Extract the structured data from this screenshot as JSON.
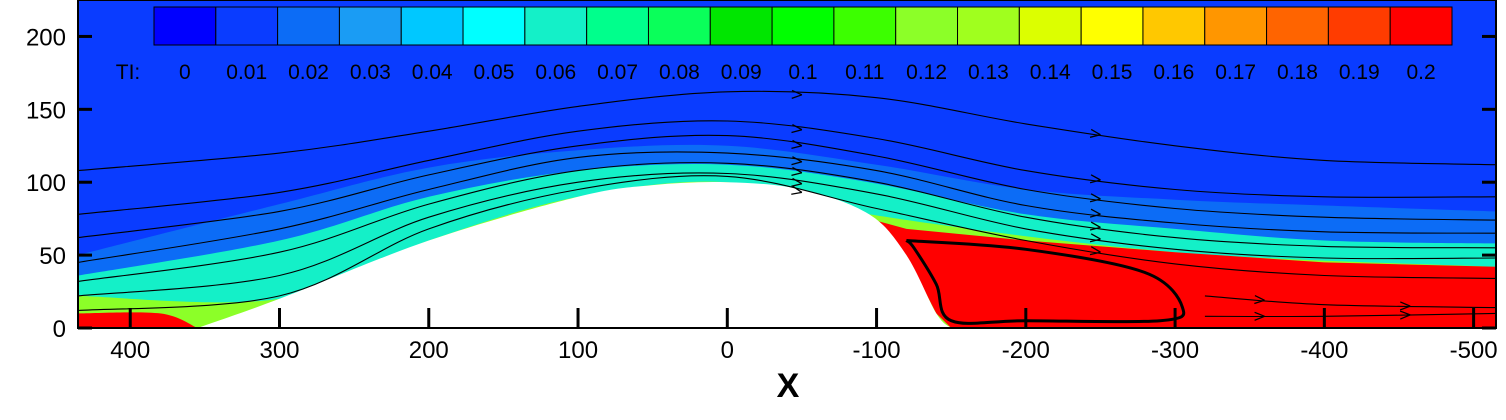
{
  "chart_data": {
    "type": "heatmap",
    "title": "",
    "xlabel": "X",
    "ylabel": "",
    "xlim": [
      435,
      -515
    ],
    "ylim": [
      0,
      225
    ],
    "x_ticks": [
      400,
      300,
      200,
      100,
      0,
      -100,
      -200,
      -300,
      -400,
      -500
    ],
    "x_tick_labels": [
      "400",
      "300",
      "200",
      "100",
      "0",
      "-100",
      "-200",
      "-300",
      "-400",
      "-500"
    ],
    "y_ticks": [
      0,
      50,
      100,
      150,
      200
    ],
    "y_tick_labels": [
      "0",
      "50",
      "100",
      "150",
      "200"
    ],
    "colorbar": {
      "label": "TI:",
      "values": [
        0,
        0.01,
        0.02,
        0.03,
        0.04,
        0.05,
        0.06,
        0.07,
        0.08,
        0.09,
        0.1,
        0.11,
        0.12,
        0.13,
        0.14,
        0.15,
        0.16,
        0.17,
        0.18,
        0.19,
        0.2
      ],
      "labels": [
        "0",
        "0.01",
        "0.02",
        "0.03",
        "0.04",
        "0.05",
        "0.06",
        "0.07",
        "0.08",
        "0.09",
        "0.1",
        "0.11",
        "0.12",
        "0.13",
        "0.14",
        "0.15",
        "0.16",
        "0.17",
        "0.18",
        "0.19",
        "0.2"
      ],
      "colors": [
        "#0000ff",
        "#0a3cff",
        "#0c6cf6",
        "#1a9cf4",
        "#00c8ff",
        "#00ffff",
        "#14f0c8",
        "#00ff8c",
        "#0aff5a",
        "#00e600",
        "#00ff00",
        "#3cff00",
        "#8cff28",
        "#a0ff1e",
        "#dcff00",
        "#ffff00",
        "#ffc800",
        "#ff9600",
        "#ff6400",
        "#ff3c00",
        "#ff0000"
      ]
    },
    "hill": {
      "shape": "asymmetric ridge with steep lee side",
      "points": [
        [
          355,
          0
        ],
        [
          300,
          20
        ],
        [
          200,
          60
        ],
        [
          100,
          90
        ],
        [
          50,
          98
        ],
        [
          0,
          100
        ],
        [
          -50,
          95
        ],
        [
          -95,
          78
        ],
        [
          -120,
          50
        ],
        [
          -140,
          10
        ],
        [
          -150,
          0
        ]
      ]
    },
    "recirculation_zone": {
      "ti_level": 0.2,
      "points": [
        [
          -95,
          75
        ],
        [
          -120,
          68
        ],
        [
          -200,
          60
        ],
        [
          -300,
          52
        ],
        [
          -400,
          45
        ],
        [
          -515,
          42
        ],
        [
          -515,
          0
        ],
        [
          -150,
          0
        ],
        [
          -140,
          10
        ],
        [
          -120,
          50
        ]
      ]
    },
    "bands": [
      {
        "ti": 0.2,
        "points": [
          [
            435,
            10
          ],
          [
            380,
            10
          ],
          [
            355,
            0
          ]
        ]
      },
      {
        "ti": 0.12,
        "points": [
          [
            435,
            22
          ],
          [
            300,
            20
          ],
          [
            200,
            60
          ],
          [
            100,
            90
          ],
          [
            0,
            100
          ],
          [
            -95,
            78
          ],
          [
            -300,
            52
          ],
          [
            -515,
            42
          ]
        ]
      },
      {
        "ti": 0.06,
        "points": [
          [
            435,
            36
          ],
          [
            300,
            60
          ],
          [
            200,
            90
          ],
          [
            100,
            108
          ],
          [
            0,
            112
          ],
          [
            -95,
            100
          ],
          [
            -200,
            78
          ],
          [
            -300,
            68
          ],
          [
            -400,
            60
          ],
          [
            -515,
            58
          ]
        ]
      },
      {
        "ti": 0.02,
        "points": [
          [
            435,
            50
          ],
          [
            300,
            85
          ],
          [
            200,
            110
          ],
          [
            100,
            122
          ],
          [
            0,
            125
          ],
          [
            -100,
            112
          ],
          [
            -200,
            95
          ],
          [
            -300,
            88
          ],
          [
            -400,
            84
          ],
          [
            -515,
            80
          ]
        ]
      }
    ],
    "streamlines": [
      [
        [
          435,
          108
        ],
        [
          300,
          120
        ],
        [
          200,
          135
        ],
        [
          100,
          152
        ],
        [
          0,
          162
        ],
        [
          -100,
          158
        ],
        [
          -200,
          140
        ],
        [
          -300,
          125
        ],
        [
          -400,
          115
        ],
        [
          -515,
          112
        ]
      ],
      [
        [
          435,
          78
        ],
        [
          300,
          93
        ],
        [
          200,
          115
        ],
        [
          100,
          135
        ],
        [
          0,
          142
        ],
        [
          -100,
          130
        ],
        [
          -200,
          108
        ],
        [
          -300,
          95
        ],
        [
          -400,
          90
        ],
        [
          -515,
          90
        ]
      ],
      [
        [
          435,
          62
        ],
        [
          300,
          80
        ],
        [
          200,
          105
        ],
        [
          100,
          125
        ],
        [
          0,
          132
        ],
        [
          -100,
          118
        ],
        [
          -200,
          95
        ],
        [
          -300,
          82
        ],
        [
          -400,
          76
        ],
        [
          -515,
          74
        ]
      ],
      [
        [
          435,
          45
        ],
        [
          300,
          68
        ],
        [
          200,
          95
        ],
        [
          100,
          117
        ],
        [
          0,
          120
        ],
        [
          -100,
          108
        ],
        [
          -200,
          84
        ],
        [
          -300,
          72
        ],
        [
          -400,
          66
        ],
        [
          -515,
          65
        ]
      ],
      [
        [
          435,
          32
        ],
        [
          300,
          52
        ],
        [
          200,
          85
        ],
        [
          100,
          108
        ],
        [
          0,
          113
        ],
        [
          -100,
          100
        ],
        [
          -200,
          76
        ],
        [
          -300,
          62
        ],
        [
          -400,
          56
        ],
        [
          -515,
          55
        ]
      ],
      [
        [
          435,
          22
        ],
        [
          300,
          36
        ],
        [
          200,
          76
        ],
        [
          100,
          100
        ],
        [
          0,
          106
        ],
        [
          -100,
          92
        ],
        [
          -200,
          68
        ],
        [
          -300,
          54
        ],
        [
          -400,
          48
        ],
        [
          -515,
          48
        ]
      ],
      [
        [
          435,
          12
        ],
        [
          300,
          22
        ],
        [
          200,
          68
        ],
        [
          100,
          95
        ],
        [
          0,
          104
        ],
        [
          -100,
          82
        ],
        [
          -200,
          60
        ],
        [
          -300,
          44
        ],
        [
          -400,
          36
        ],
        [
          -515,
          34
        ]
      ],
      [
        [
          -320,
          22
        ],
        [
          -400,
          16
        ],
        [
          -515,
          14
        ]
      ],
      [
        [
          -320,
          8
        ],
        [
          -400,
          8
        ],
        [
          -515,
          10
        ]
      ]
    ],
    "recirculation_loop": [
      [
        -120,
        60
      ],
      [
        -200,
        54
      ],
      [
        -280,
        38
      ],
      [
        -305,
        14
      ],
      [
        -290,
        5
      ],
      [
        -200,
        5
      ],
      [
        -150,
        5
      ],
      [
        -140,
        30
      ],
      [
        -125,
        55
      ],
      [
        -120,
        60
      ]
    ],
    "grid": false,
    "legend": "top"
  }
}
